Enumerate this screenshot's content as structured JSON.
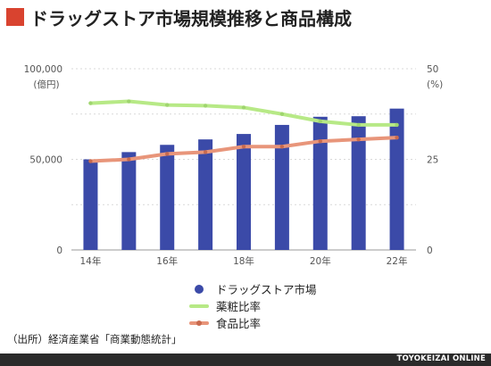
{
  "header": {
    "title": "ドラッグストア市場規模推移と商品構成"
  },
  "chart_data": {
    "type": "bar",
    "categories": [
      "14年",
      "15年",
      "16年",
      "17年",
      "18年",
      "19年",
      "20年",
      "21年",
      "22年"
    ],
    "x_tick_labels": [
      "14年",
      "",
      "16年",
      "",
      "18年",
      "",
      "20年",
      "",
      "22年"
    ],
    "left_axis": {
      "ylim": [
        0,
        100000
      ],
      "ticks": [
        "0",
        "50,000",
        "100,000"
      ],
      "tick_values": [
        0,
        50000,
        100000
      ],
      "unit": "(億円)"
    },
    "right_axis": {
      "ylim": [
        0,
        50
      ],
      "ticks": [
        "0",
        "25",
        "50"
      ],
      "tick_values": [
        0,
        25,
        50
      ],
      "unit": "(%)"
    },
    "grid": true,
    "legend_position": "bottom",
    "series": [
      {
        "name": "ドラッグストア市場",
        "kind": "bar",
        "axis": "left",
        "color": "#3b4aa8",
        "values": [
          50000,
          54000,
          58000,
          61000,
          64000,
          69000,
          73500,
          73800,
          78000
        ]
      },
      {
        "name": "薬粧比率",
        "kind": "line",
        "axis": "right",
        "color": "#b7e986",
        "values": [
          40.5,
          41,
          40,
          39.8,
          39.3,
          37.5,
          35.5,
          34.5,
          34.5
        ]
      },
      {
        "name": "食品比率",
        "kind": "line",
        "axis": "right",
        "color": "#e8957a",
        "values": [
          24.5,
          25,
          26.5,
          27,
          28.5,
          28.5,
          30,
          30.5,
          31
        ]
      }
    ]
  },
  "footer": {
    "source": "（出所）経済産業省「商業動態統計」",
    "brand": "TOYOKEIZAI ONLINE"
  }
}
